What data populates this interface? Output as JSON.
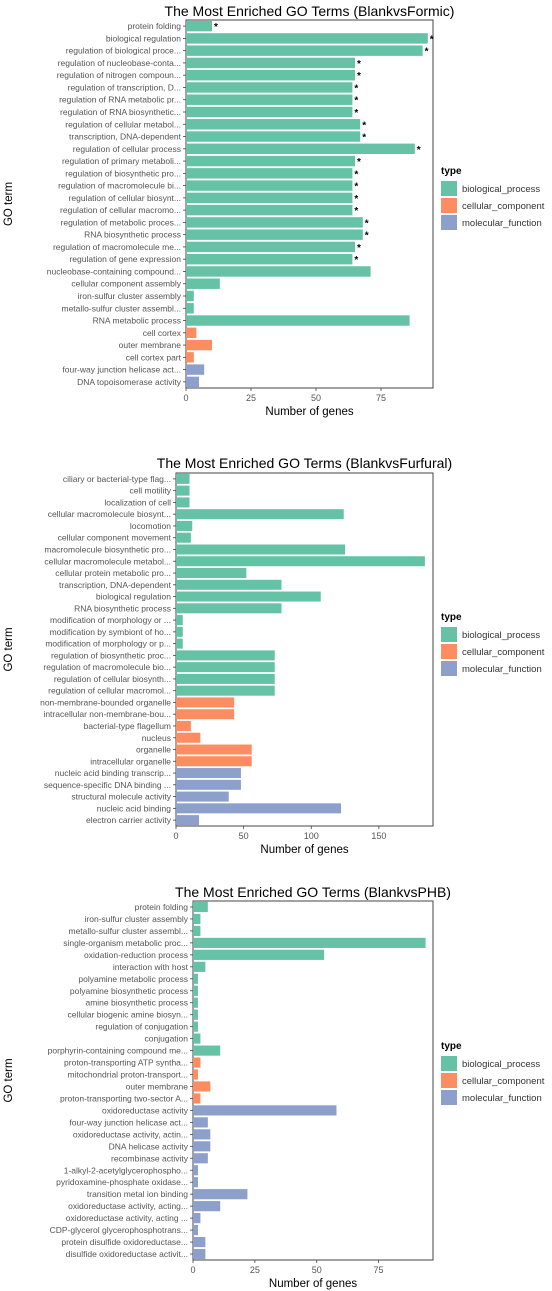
{
  "legend_title": "type",
  "colors": {
    "biological_process": "#66c2a5",
    "cellular_component": "#fc8d62",
    "molecular_function": "#8da0cb"
  },
  "chart_data": [
    {
      "type": "bar",
      "orientation": "horizontal",
      "title": "The Most Enriched GO Terms (BlankvsFormic)",
      "xlabel": "Number of genes",
      "ylabel": "GO term",
      "xlim": [
        0,
        95
      ],
      "xticks": [
        0,
        25,
        50,
        75
      ],
      "grid": false,
      "legend": {
        "title": "type",
        "position": "right",
        "entries": [
          "biological_process",
          "cellular_component",
          "molecular_function"
        ]
      },
      "categories": [
        "protein folding",
        "biological regulation",
        "regulation of biological proce...",
        "regulation of nucleobase-conta...",
        "regulation of nitrogen compoun...",
        "regulation of transcription, D...",
        "regulation of RNA metabolic pr...",
        "regulation of RNA biosynthetic...",
        "regulation of cellular metabol...",
        "transcription, DNA-dependent",
        "regulation of cellular process",
        "regulation of primary metaboli...",
        "regulation of biosynthetic pro...",
        "regulation of macromolecule bi...",
        "regulation of cellular biosynt...",
        "regulation of cellular macromo...",
        "regulation of metabolic proces...",
        "RNA biosynthetic process",
        "regulation of macromolecule me...",
        "regulation of gene expression",
        "nucleobase-containing compound...",
        "cellular component assembly",
        "iron-sulfur cluster assembly",
        "metallo-sulfur cluster assembl...",
        "RNA metabolic process",
        "cell cortex",
        "outer membrane",
        "cell cortex part",
        "four-way junction helicase act...",
        "DNA topoisomerase activity"
      ],
      "values": [
        10,
        93,
        91,
        65,
        65,
        64,
        64,
        64,
        67,
        67,
        88,
        65,
        64,
        64,
        64,
        64,
        68,
        68,
        65,
        64,
        71,
        13,
        3,
        3,
        86,
        4,
        10,
        3,
        7,
        5
      ],
      "groups": [
        "biological_process",
        "biological_process",
        "biological_process",
        "biological_process",
        "biological_process",
        "biological_process",
        "biological_process",
        "biological_process",
        "biological_process",
        "biological_process",
        "biological_process",
        "biological_process",
        "biological_process",
        "biological_process",
        "biological_process",
        "biological_process",
        "biological_process",
        "biological_process",
        "biological_process",
        "biological_process",
        "biological_process",
        "biological_process",
        "biological_process",
        "biological_process",
        "biological_process",
        "cellular_component",
        "cellular_component",
        "cellular_component",
        "molecular_function",
        "molecular_function"
      ],
      "annotations": [
        "*",
        "*",
        "*",
        "*",
        "*",
        "*",
        "*",
        "*",
        "*",
        "*",
        "*",
        "*",
        "*",
        "*",
        "*",
        "*",
        "*",
        "*",
        "*",
        "*",
        "",
        "",
        "",
        "",
        "",
        "",
        "",
        "",
        "",
        ""
      ]
    },
    {
      "type": "bar",
      "orientation": "horizontal",
      "title": "The Most Enriched GO Terms (BlankvsFurfural)",
      "xlabel": "Number of genes",
      "ylabel": "GO term",
      "xlim": [
        0,
        190
      ],
      "xticks": [
        0,
        50,
        100,
        150
      ],
      "grid": false,
      "legend": {
        "title": "type",
        "position": "right",
        "entries": [
          "biological_process",
          "cellular_component",
          "molecular_function"
        ]
      },
      "categories": [
        "ciliary or bacterial-type flag...",
        "cell motility",
        "localization of cell",
        "cellular macromolecule biosynt...",
        "locomotion",
        "cellular component movement",
        "macromolecule biosynthetic pro...",
        "cellular macromolecule metabol...",
        "cellular protein metabolic pro...",
        "transcription, DNA-dependent",
        "biological regulation",
        "RNA biosynthetic process",
        "modification of morphology or ...",
        "modification by symbiont of ho...",
        "modification of morphology or p...",
        "regulation of biosynthetic proc...",
        "regulation of macromolecule bio...",
        "regulation of cellular biosynth...",
        "regulation of cellular macromol...",
        "non-membrane-bounded organelle",
        "intracellular non-membrane-bou...",
        "bacterial-type flagellum",
        "nucleus",
        "organelle",
        "intracellular organelle",
        "nucleic acid binding transcrip...",
        "sequence-specific DNA binding ...",
        "structural molecule activity",
        "nucleic acid binding",
        "electron carrier activity"
      ],
      "values": [
        10,
        10,
        10,
        124,
        12,
        11,
        125,
        184,
        52,
        78,
        107,
        78,
        5,
        5,
        5,
        73,
        73,
        73,
        73,
        43,
        43,
        11,
        18,
        56,
        56,
        48,
        48,
        39,
        122,
        17
      ],
      "groups": [
        "biological_process",
        "biological_process",
        "biological_process",
        "biological_process",
        "biological_process",
        "biological_process",
        "biological_process",
        "biological_process",
        "biological_process",
        "biological_process",
        "biological_process",
        "biological_process",
        "biological_process",
        "biological_process",
        "biological_process",
        "biological_process",
        "biological_process",
        "biological_process",
        "biological_process",
        "cellular_component",
        "cellular_component",
        "cellular_component",
        "cellular_component",
        "cellular_component",
        "cellular_component",
        "molecular_function",
        "molecular_function",
        "molecular_function",
        "molecular_function",
        "molecular_function"
      ],
      "annotations": []
    },
    {
      "type": "bar",
      "orientation": "horizontal",
      "title": "The Most Enriched GO Terms (BlankvsPHB)",
      "xlabel": "Number of genes",
      "ylabel": "GO term",
      "xlim": [
        0,
        97
      ],
      "xticks": [
        0,
        25,
        50,
        75
      ],
      "grid": false,
      "legend": {
        "title": "type",
        "position": "right",
        "entries": [
          "biological_process",
          "cellular_component",
          "molecular_function"
        ]
      },
      "categories": [
        "protein folding",
        "iron-sulfur cluster assembly",
        "metallo-sulfur cluster assembl...",
        "single-organism metabolic proc...",
        "oxidation-reduction process",
        "interaction with host",
        "polyamine metabolic process",
        "polyamine biosynthetic process",
        "amine biosynthetic process",
        "cellular biogenic amine biosyn...",
        "regulation of conjugation",
        "conjugation",
        "porphyrin-containing compound me...",
        "proton-transporting ATP syntha...",
        "mitochondrial proton-transport...",
        "outer membrane",
        "proton-transporting two-sector A...",
        "oxidoreductase activity",
        "four-way junction helicase act...",
        "oxidoreductase activity, actin...",
        "DNA helicase activity",
        "recombinase activity",
        "1-alkyl-2-acetylglycerophospho...",
        "pyridoxamine-phosphate oxidase...",
        "transition metal ion binding",
        "oxidoreductase activity, acting...",
        "oxidoreductase activity, acting ...",
        "CDP-glycerol glycerophosphotrans...",
        "protein disulfide oxidoreductase...",
        "disulfide oxidoreductase activit..."
      ],
      "values": [
        6,
        3,
        3,
        94,
        53,
        5,
        2,
        2,
        2,
        2,
        2,
        3,
        11,
        3,
        2,
        7,
        3,
        58,
        6,
        7,
        7,
        6,
        2,
        2,
        22,
        11,
        3,
        2,
        5,
        5
      ],
      "groups": [
        "biological_process",
        "biological_process",
        "biological_process",
        "biological_process",
        "biological_process",
        "biological_process",
        "biological_process",
        "biological_process",
        "biological_process",
        "biological_process",
        "biological_process",
        "biological_process",
        "biological_process",
        "cellular_component",
        "cellular_component",
        "cellular_component",
        "cellular_component",
        "molecular_function",
        "molecular_function",
        "molecular_function",
        "molecular_function",
        "molecular_function",
        "molecular_function",
        "molecular_function",
        "molecular_function",
        "molecular_function",
        "molecular_function",
        "molecular_function",
        "molecular_function",
        "molecular_function"
      ],
      "annotations": []
    }
  ]
}
